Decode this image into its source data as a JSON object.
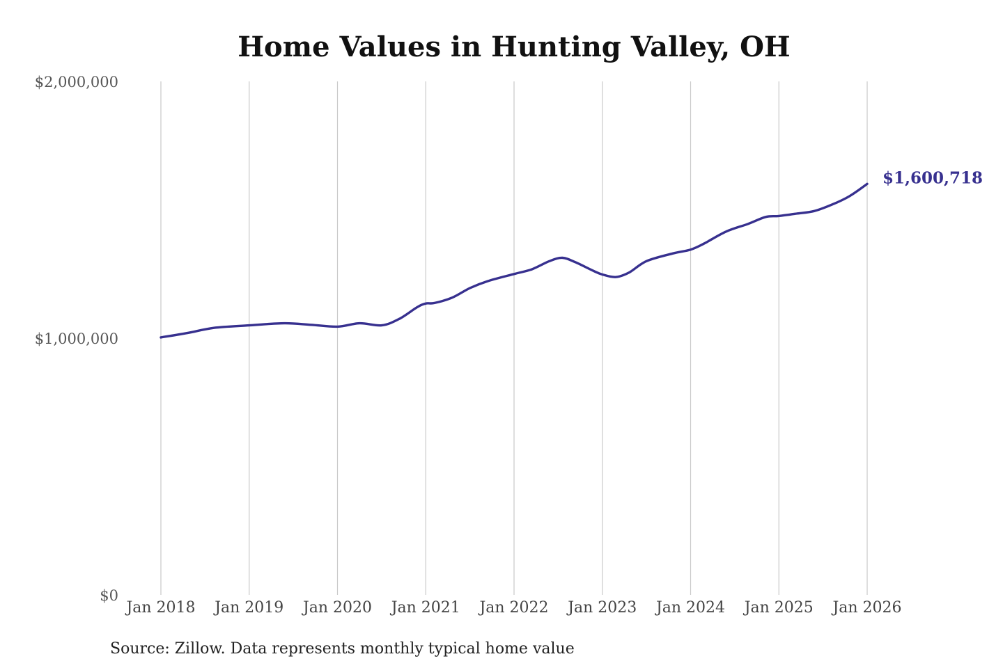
{
  "chart_data": {
    "type": "line",
    "title": "Home Values in Hunting Valley, OH",
    "source": "Source: Zillow. Data represents monthly typical home value",
    "ylim": [
      0,
      2000000
    ],
    "yticks": [
      0,
      1000000,
      2000000
    ],
    "ytick_labels": [
      "$0",
      "$1,000,000",
      "$2,000,000"
    ],
    "xlim": [
      2018.0,
      2026.0
    ],
    "xticks": [
      2018,
      2019,
      2020,
      2021,
      2022,
      2023,
      2024,
      2025,
      2026
    ],
    "xtick_labels": [
      "Jan 2018",
      "Jan 2019",
      "Jan 2020",
      "Jan 2021",
      "Jan 2022",
      "Jan 2023",
      "Jan 2024",
      "Jan 2025",
      "Jan 2026"
    ],
    "grid": "vertical",
    "line_color": "#37308f",
    "end_label": "$1,600,718",
    "series": [
      {
        "x": [
          2018.0,
          2018.3,
          2018.6,
          2019.0,
          2019.4,
          2019.7,
          2020.0,
          2020.25,
          2020.5,
          2020.7,
          2020.9,
          2021.0,
          2021.1,
          2021.3,
          2021.5,
          2021.7,
          2022.0,
          2022.2,
          2022.4,
          2022.55,
          2022.7,
          2022.9,
          2023.0,
          2023.15,
          2023.3,
          2023.5,
          2023.8,
          2024.0,
          2024.15,
          2024.4,
          2024.65,
          2024.85,
          2025.0,
          2025.2,
          2025.4,
          2025.6,
          2025.8,
          2026.0
        ],
        "values": [
          1003000,
          1020000,
          1040000,
          1050000,
          1058000,
          1052000,
          1045000,
          1058000,
          1050000,
          1075000,
          1120000,
          1135000,
          1137000,
          1158000,
          1195000,
          1222000,
          1250000,
          1268000,
          1300000,
          1313000,
          1295000,
          1262000,
          1248000,
          1238000,
          1255000,
          1300000,
          1330000,
          1345000,
          1368000,
          1415000,
          1445000,
          1472000,
          1476000,
          1485000,
          1495000,
          1520000,
          1553000,
          1600718
        ]
      }
    ]
  }
}
